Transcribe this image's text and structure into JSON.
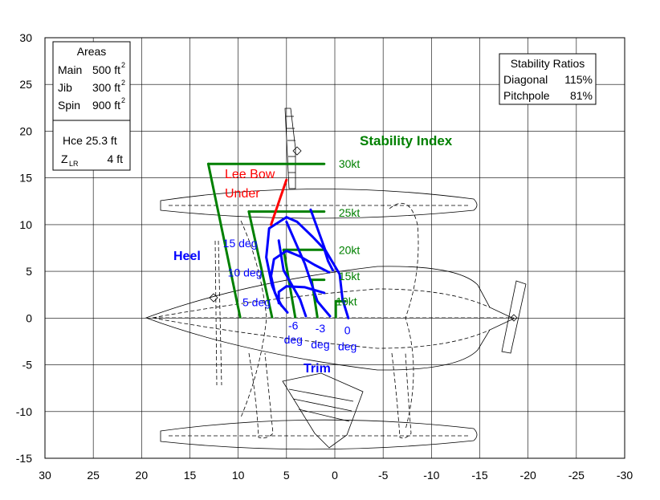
{
  "chart_data": {
    "type": "line",
    "title": "",
    "xlabel": "",
    "ylabel": "",
    "xlim": [
      30,
      -30
    ],
    "ylim": [
      -15,
      30
    ],
    "x_reversed": true,
    "grid": true,
    "xticks": [
      "30",
      "25",
      "20",
      "15",
      "10",
      "5",
      "0",
      "-5",
      "-10",
      "-15",
      "-20",
      "-25",
      "-30"
    ],
    "yticks": [
      "30",
      "25",
      "20",
      "15",
      "10",
      "5",
      "0",
      "-5",
      "-10",
      "-15"
    ],
    "areas_box": {
      "heading": "Areas",
      "rows": [
        {
          "label": "Main",
          "value": "500 ft",
          "sup": "2"
        },
        {
          "label": "Jib",
          "value": "300 ft",
          "sup": "2"
        },
        {
          "label": "Spin",
          "value": "900 ft",
          "sup": "2"
        }
      ],
      "hce": "Hce 25.3 ft",
      "zlr_label": "Z",
      "zlr_sub": "LR",
      "zlr_value": "4 ft"
    },
    "ratios_box": {
      "heading": "Stability Ratios",
      "rows": [
        {
          "label": "Diagonal",
          "value": "115%"
        },
        {
          "label": "Pitchpole",
          "value": "81%"
        }
      ]
    },
    "labels": {
      "stability_index": "Stability Index",
      "lee_bow": "Lee Bow",
      "under": "Under",
      "heel": "Heel",
      "trim": "Trim"
    },
    "colors": {
      "green": "#008000",
      "blue": "#0000ff",
      "red": "#ff0000",
      "grid": "#000000"
    },
    "series": [
      {
        "name": "Stability Index",
        "color": "#008000",
        "segments": [
          [
            [
              13.1,
              16.5
            ],
            [
              1.1,
              16.5
            ]
          ],
          [
            [
              13.1,
              16.5
            ],
            [
              9.8,
              0.1
            ]
          ],
          [
            [
              8.9,
              11.4
            ],
            [
              1.1,
              11.4
            ]
          ],
          [
            [
              8.9,
              11.4
            ],
            [
              6.5,
              0.1
            ]
          ],
          [
            [
              5.3,
              7.3
            ],
            [
              1.1,
              7.3
            ]
          ],
          [
            [
              5.3,
              7.3
            ],
            [
              4.1,
              0.1
            ]
          ],
          [
            [
              2.4,
              4.1
            ],
            [
              1.1,
              4.1
            ]
          ],
          [
            [
              2.4,
              4.1
            ],
            [
              1.8,
              0.1
            ]
          ],
          [
            [
              -0.1,
              1.8
            ],
            [
              -1.1,
              1.8
            ]
          ],
          [
            [
              -0.1,
              1.8
            ],
            [
              -0.1,
              0.1
            ]
          ]
        ],
        "labels": [
          {
            "text": "30kt",
            "x": -1.5,
            "y": 16.5
          },
          {
            "text": "25kt",
            "x": -1.5,
            "y": 11.3
          },
          {
            "text": "20kt",
            "x": -1.5,
            "y": 7.3
          },
          {
            "text": "15kt",
            "x": -1.5,
            "y": 4.5
          },
          {
            "text": "10kt",
            "x": -1.2,
            "y": 1.8
          }
        ]
      },
      {
        "name": "Heel",
        "color": "#0000ff",
        "segments": [
          [
            [
              5.0,
              10.8
            ],
            [
              6.8,
              9.6
            ],
            [
              7.1,
              6.5
            ],
            [
              6.5,
              3.5
            ],
            [
              5.8,
              1.7
            ],
            [
              4.9,
              0.6
            ]
          ],
          [
            [
              5.0,
              10.8
            ],
            [
              3.9,
              10.3
            ],
            [
              2.3,
              8.7
            ],
            [
              1.1,
              7.4
            ],
            [
              0.7,
              6.1
            ],
            [
              0.2,
              5.1
            ]
          ],
          [
            [
              5.0,
              7.2
            ],
            [
              6.3,
              6.3
            ],
            [
              6.6,
              4.5
            ],
            [
              6.2,
              2.7
            ],
            [
              5.5,
              1.3
            ]
          ],
          [
            [
              5.0,
              7.2
            ],
            [
              3.6,
              6.6
            ],
            [
              2.1,
              5.7
            ],
            [
              0.6,
              4.9
            ]
          ],
          [
            [
              5.0,
              3.4
            ],
            [
              5.8,
              2.8
            ],
            [
              5.8,
              1.6
            ]
          ],
          [
            [
              5.0,
              3.4
            ],
            [
              3.1,
              3.3
            ],
            [
              1.1,
              2.7
            ]
          ]
        ],
        "labels": [
          {
            "text": "15 deg",
            "x": 9.8,
            "y": 8.0
          },
          {
            "text": "10 deg",
            "x": 9.3,
            "y": 4.9
          },
          {
            "text": "5 deg",
            "x": 8.1,
            "y": 1.7
          }
        ]
      },
      {
        "name": "Trim",
        "color": "#0000ff",
        "segments": [
          [
            [
              2.5,
              11.6
            ],
            [
              1.0,
              7.3
            ],
            [
              -0.5,
              4.7
            ],
            [
              -0.8,
              2.0
            ],
            [
              -1.4,
              0.0
            ]
          ],
          [
            [
              5.0,
              10.3
            ],
            [
              3.1,
              5.8
            ],
            [
              1.8,
              1.8
            ],
            [
              0.5,
              0.2
            ]
          ],
          [
            [
              5.8,
              8.3
            ],
            [
              5.3,
              5.1
            ],
            [
              3.6,
              2.0
            ],
            [
              3.0,
              0.2
            ]
          ]
        ],
        "labels": [
          {
            "text": "-6",
            "x": 4.3,
            "y": -0.8
          },
          {
            "text": "deg",
            "x": 4.3,
            "y": -2.3
          },
          {
            "text": "-3",
            "x": 1.5,
            "y": -1.1
          },
          {
            "text": "deg",
            "x": 1.5,
            "y": -2.8
          },
          {
            "text": "0",
            "x": -1.3,
            "y": -1.3
          },
          {
            "text": "deg",
            "x": -1.3,
            "y": -3.0
          }
        ]
      },
      {
        "name": "Lee Bow Under",
        "color": "#ff0000",
        "segments": [
          [
            [
              6.6,
              10.0
            ],
            [
              5.0,
              14.8
            ]
          ]
        ]
      }
    ]
  }
}
